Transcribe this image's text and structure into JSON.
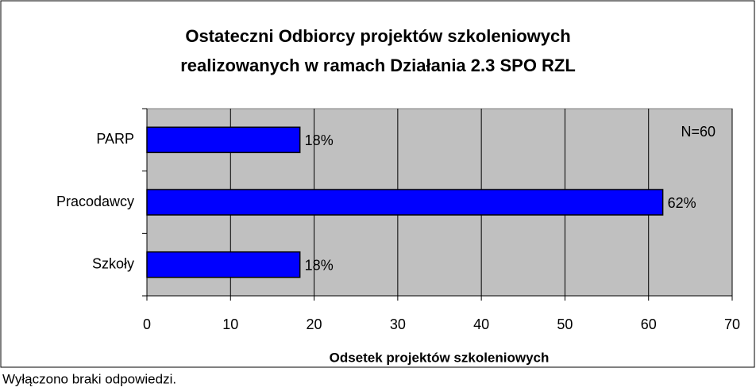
{
  "chart_data": {
    "type": "hbar",
    "title": [
      "Ostateczni Odbiorcy projektów szkoleniowych",
      "realizowanych w ramach Działania 2.3 SPO RZL"
    ],
    "categories": [
      "PARP",
      "Pracodawcy",
      "Szkoły"
    ],
    "values": [
      18.3,
      61.7,
      18.3
    ],
    "value_labels": [
      "18%",
      "62%",
      "18%"
    ],
    "color": "#0000ff",
    "xlim": [
      0,
      70
    ],
    "xticks": [
      0,
      10,
      20,
      30,
      40,
      50,
      60,
      70
    ],
    "x_label": "Odsetek projektów szkoleniowych",
    "annotation": "N=60",
    "footnote": "Wyłączono braki odpowiedzi.",
    "grid": true
  }
}
